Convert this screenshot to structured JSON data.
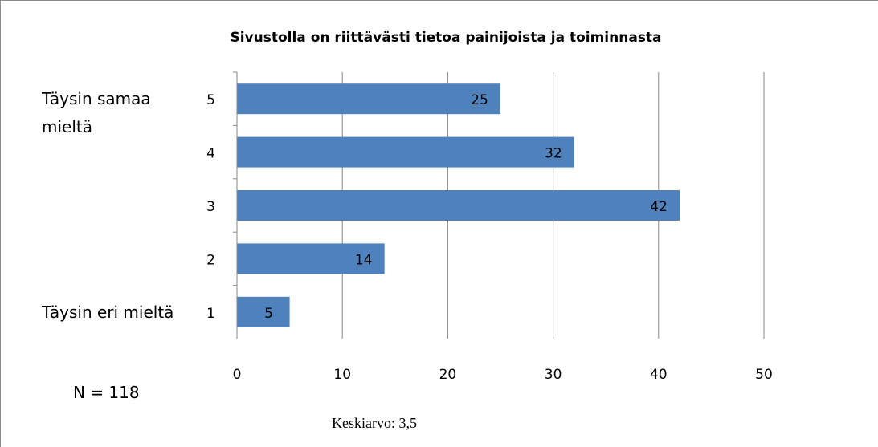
{
  "chart_data": {
    "type": "hbar",
    "title": "Sivustolla on riittävästi tietoa painijoista ja toiminnasta",
    "categories": [
      "5",
      "4",
      "3",
      "2",
      "1"
    ],
    "values": [
      25,
      32,
      42,
      14,
      5
    ],
    "color": "#4f81bd",
    "xlim": [
      0,
      50
    ],
    "xticks": [
      0,
      10,
      20,
      30,
      40,
      50
    ],
    "grid": true,
    "annotations": [
      "Täysin samaa mieltä",
      "Täysin eri mieltä",
      "N = 118",
      "Keskiarvo: 3,5"
    ]
  }
}
